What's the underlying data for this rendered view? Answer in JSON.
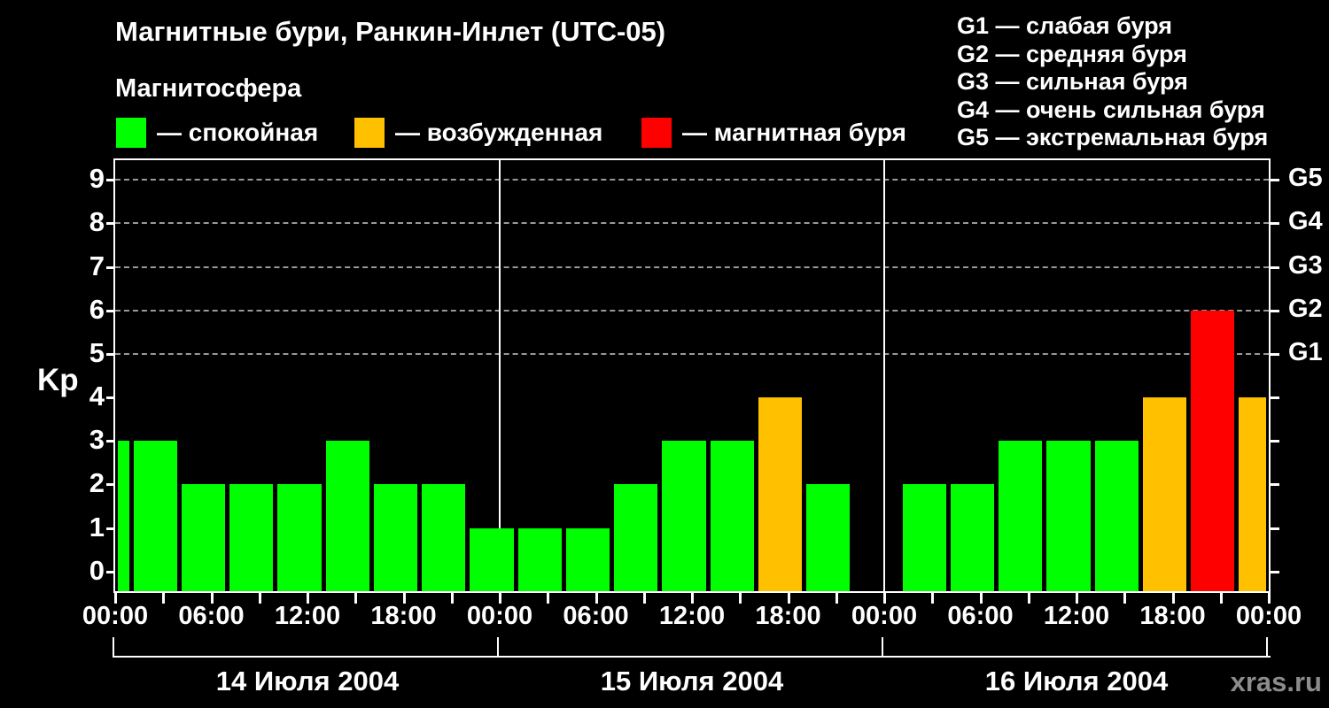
{
  "header": {
    "title": "Магнитные бури, Ранкин-Инлет (UTC-05)",
    "subtitle": "Магнитосфера"
  },
  "legend": {
    "items": [
      {
        "key": "quiet",
        "label": "— спокойная"
      },
      {
        "key": "excited",
        "label": "— возбужденная"
      },
      {
        "key": "storm",
        "label": "— магнитная буря"
      }
    ]
  },
  "g_legend": {
    "lines": [
      "G1 — слабая буря",
      "G2 — средняя буря",
      "G3 — сильная буря",
      "G4 — очень сильная буря",
      "G5 — экстремальная буря"
    ]
  },
  "colors": {
    "quiet": "#00ff00",
    "excited": "#ffc000",
    "storm": "#ff0000",
    "grid": "#999999",
    "axis": "#ffffff",
    "watermark": "#8c8c8c",
    "background": "#000000"
  },
  "axes": {
    "y_label": "Kp",
    "y_ticks": [
      0,
      1,
      2,
      3,
      4,
      5,
      6,
      7,
      8,
      9
    ],
    "g_ticks": [
      {
        "label": "G1",
        "kp": 5
      },
      {
        "label": "G2",
        "kp": 6
      },
      {
        "label": "G3",
        "kp": 7
      },
      {
        "label": "G4",
        "kp": 8
      },
      {
        "label": "G5",
        "kp": 9
      }
    ],
    "x_tick_hours": [
      0,
      3,
      6,
      9,
      12,
      15,
      18,
      21,
      24,
      27,
      30,
      33,
      36,
      39,
      42,
      45,
      48,
      51,
      54,
      57,
      60,
      63,
      66,
      69,
      72
    ],
    "x_time_labels": [
      {
        "hour": 0,
        "label": "00:00"
      },
      {
        "hour": 6,
        "label": "06:00"
      },
      {
        "hour": 12,
        "label": "12:00"
      },
      {
        "hour": 18,
        "label": "18:00"
      },
      {
        "hour": 24,
        "label": "00:00"
      },
      {
        "hour": 30,
        "label": "06:00"
      },
      {
        "hour": 36,
        "label": "12:00"
      },
      {
        "hour": 42,
        "label": "18:00"
      },
      {
        "hour": 48,
        "label": "00:00"
      },
      {
        "hour": 54,
        "label": "06:00"
      },
      {
        "hour": 60,
        "label": "12:00"
      },
      {
        "hour": 66,
        "label": "18:00"
      },
      {
        "hour": 72,
        "label": "00:00"
      }
    ],
    "days": [
      {
        "label": "14 Июля 2004",
        "mid_hour": 12
      },
      {
        "label": "15 Июля 2004",
        "mid_hour": 36
      },
      {
        "label": "16 Июля 2004",
        "mid_hour": 60
      }
    ],
    "bracket_tick_hours": [
      0,
      24,
      48,
      72
    ]
  },
  "watermark": "xras.ru",
  "chart_data": {
    "type": "bar",
    "title": "Магнитные бури, Ранкин-Инлет (UTC-05)",
    "subtitle": "Магнитосфера",
    "ylabel": "Kp",
    "ylim": [
      -0.45,
      9.45
    ],
    "grid_kp": [
      5,
      6,
      7,
      8,
      9
    ],
    "day_separator_hours": [
      24,
      48
    ],
    "x_axis_note_hours_from": "00:00 14 Июля 2004 (UTC-05)",
    "bars": [
      {
        "h0": 0,
        "h1": 1,
        "kp": 3,
        "state": "quiet"
      },
      {
        "h0": 1,
        "h1": 4,
        "kp": 3,
        "state": "quiet"
      },
      {
        "h0": 4,
        "h1": 7,
        "kp": 2,
        "state": "quiet"
      },
      {
        "h0": 7,
        "h1": 10,
        "kp": 2,
        "state": "quiet"
      },
      {
        "h0": 10,
        "h1": 13,
        "kp": 2,
        "state": "quiet"
      },
      {
        "h0": 13,
        "h1": 16,
        "kp": 3,
        "state": "quiet"
      },
      {
        "h0": 16,
        "h1": 19,
        "kp": 2,
        "state": "quiet"
      },
      {
        "h0": 19,
        "h1": 22,
        "kp": 2,
        "state": "quiet"
      },
      {
        "h0": 22,
        "h1": 25,
        "kp": 1,
        "state": "quiet"
      },
      {
        "h0": 25,
        "h1": 28,
        "kp": 1,
        "state": "quiet"
      },
      {
        "h0": 28,
        "h1": 31,
        "kp": 1,
        "state": "quiet"
      },
      {
        "h0": 31,
        "h1": 34,
        "kp": 2,
        "state": "quiet"
      },
      {
        "h0": 34,
        "h1": 37,
        "kp": 3,
        "state": "quiet"
      },
      {
        "h0": 37,
        "h1": 40,
        "kp": 3,
        "state": "quiet"
      },
      {
        "h0": 40,
        "h1": 43,
        "kp": 4,
        "state": "excited"
      },
      {
        "h0": 43,
        "h1": 46,
        "kp": 2,
        "state": "quiet"
      },
      {
        "h0": 49,
        "h1": 52,
        "kp": 2,
        "state": "quiet"
      },
      {
        "h0": 52,
        "h1": 55,
        "kp": 2,
        "state": "quiet"
      },
      {
        "h0": 55,
        "h1": 58,
        "kp": 3,
        "state": "quiet"
      },
      {
        "h0": 58,
        "h1": 61,
        "kp": 3,
        "state": "quiet"
      },
      {
        "h0": 61,
        "h1": 64,
        "kp": 3,
        "state": "quiet"
      },
      {
        "h0": 64,
        "h1": 67,
        "kp": 4,
        "state": "excited"
      },
      {
        "h0": 67,
        "h1": 70,
        "kp": 6,
        "state": "storm"
      },
      {
        "h0": 70,
        "h1": 72,
        "kp": 4,
        "state": "excited"
      }
    ]
  }
}
